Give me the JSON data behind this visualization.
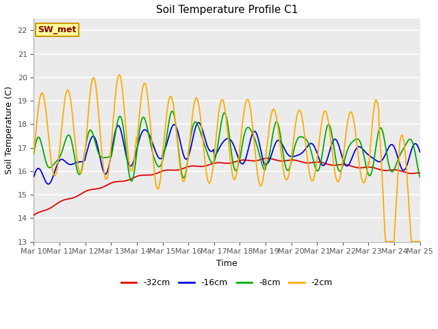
{
  "title": "Soil Temperature Profile C1",
  "xlabel": "Time",
  "ylabel": "Soil Temperature (C)",
  "ylim": [
    13.0,
    22.5
  ],
  "yticks": [
    13.0,
    14.0,
    15.0,
    16.0,
    17.0,
    18.0,
    19.0,
    20.0,
    21.0,
    22.0
  ],
  "plot_bg_color": "#ebebeb",
  "fig_bg_color": "#ffffff",
  "grid_color": "#ffffff",
  "legend_label": "SW_met",
  "legend_box_facecolor": "#ffff99",
  "legend_box_edgecolor": "#cc9900",
  "legend_text_color": "#880000",
  "series_colors": {
    "-32cm": "#dd0000",
    "-16cm": "#0000dd",
    "-8cm": "#00aa00",
    "-2cm": "#ffaa00"
  },
  "x_labels": [
    "Mar 10",
    "Mar 11",
    "Mar 12",
    "Mar 13",
    "Mar 14",
    "Mar 15",
    "Mar 16",
    "Mar 17",
    "Mar 18",
    "Mar 19",
    "Mar 20",
    "Mar 21",
    "Mar 22",
    "Mar 23",
    "Mar 24",
    "Mar 25"
  ]
}
